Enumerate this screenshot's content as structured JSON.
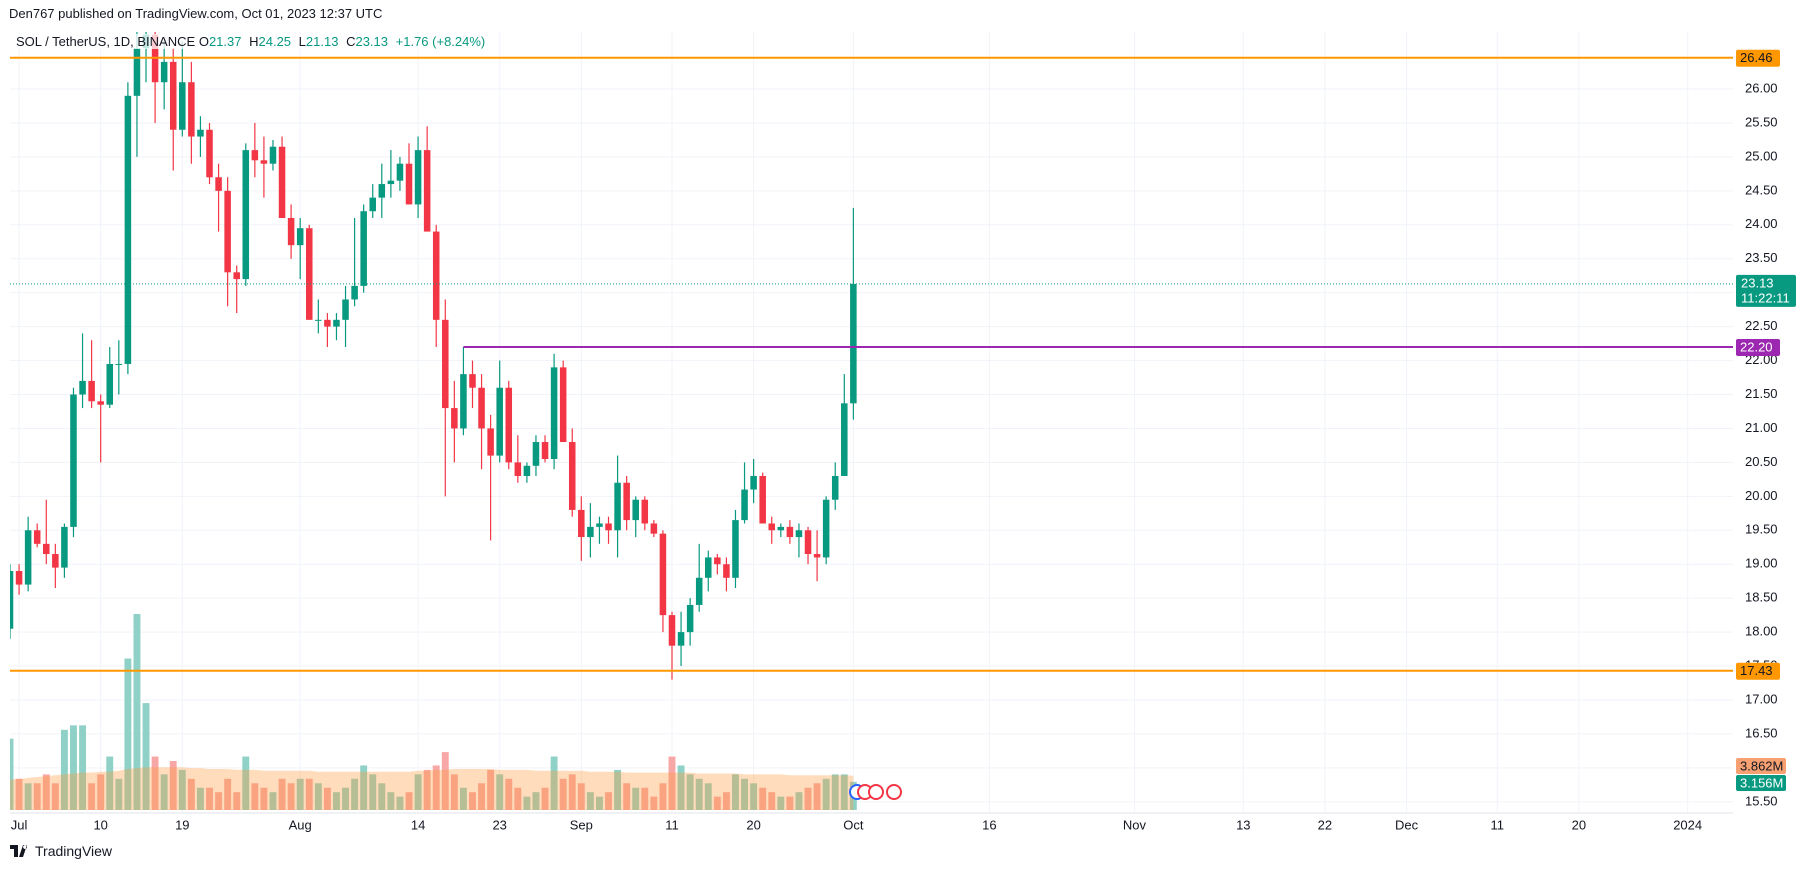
{
  "publisher": "Den767 published on TradingView.com, Oct 01, 2023 12:37 UTC",
  "footer": "TradingView",
  "chart_data": {
    "type": "candlestick",
    "legend": {
      "symbol": "SOL / TetherUS, 1D, BINANCE",
      "items": [
        {
          "key": "O",
          "value": 21.37
        },
        {
          "key": "H",
          "value": 24.25
        },
        {
          "key": "L",
          "value": 21.13
        },
        {
          "key": "C",
          "value": 23.13
        }
      ],
      "change": "+1.76 (+8.24%)"
    },
    "up_color": "#089981",
    "down_color": "#f23645",
    "volume_up_color": "#8fd1c6",
    "volume_down_color": "#f7a8a6",
    "volume_ma_color": "#ff9a3c",
    "grid": true,
    "x": [
      "2023-06-30",
      "2023-07-01",
      "2023-07-02",
      "2023-07-03",
      "2023-07-04",
      "2023-07-05",
      "2023-07-06",
      "2023-07-07",
      "2023-07-08",
      "2023-07-09",
      "2023-07-10",
      "2023-07-11",
      "2023-07-12",
      "2023-07-13",
      "2023-07-14",
      "2023-07-15",
      "2023-07-16",
      "2023-07-17",
      "2023-07-18",
      "2023-07-19",
      "2023-07-20",
      "2023-07-21",
      "2023-07-22",
      "2023-07-23",
      "2023-07-24",
      "2023-07-25",
      "2023-07-26",
      "2023-07-27",
      "2023-07-28",
      "2023-07-29",
      "2023-07-30",
      "2023-07-31",
      "2023-08-01",
      "2023-08-02",
      "2023-08-03",
      "2023-08-04",
      "2023-08-05",
      "2023-08-06",
      "2023-08-07",
      "2023-08-08",
      "2023-08-09",
      "2023-08-10",
      "2023-08-11",
      "2023-08-12",
      "2023-08-13",
      "2023-08-14",
      "2023-08-15",
      "2023-08-16",
      "2023-08-17",
      "2023-08-18",
      "2023-08-19",
      "2023-08-20",
      "2023-08-21",
      "2023-08-22",
      "2023-08-23",
      "2023-08-24",
      "2023-08-25",
      "2023-08-26",
      "2023-08-27",
      "2023-08-28",
      "2023-08-29",
      "2023-08-30",
      "2023-08-31",
      "2023-09-01",
      "2023-09-02",
      "2023-09-03",
      "2023-09-04",
      "2023-09-05",
      "2023-09-06",
      "2023-09-07",
      "2023-09-08",
      "2023-09-09",
      "2023-09-10",
      "2023-09-11",
      "2023-09-12",
      "2023-09-13",
      "2023-09-14",
      "2023-09-15",
      "2023-09-16",
      "2023-09-17",
      "2023-09-18",
      "2023-09-19",
      "2023-09-20",
      "2023-09-21",
      "2023-09-22",
      "2023-09-23",
      "2023-09-24",
      "2023-09-25",
      "2023-09-26",
      "2023-09-27",
      "2023-09-28",
      "2023-09-29",
      "2023-09-30",
      "2023-10-01"
    ],
    "open": [
      18.05,
      18.9,
      18.7,
      19.5,
      19.3,
      19.15,
      18.95,
      19.55,
      21.5,
      21.7,
      21.4,
      21.35,
      21.95,
      21.95,
      25.9,
      26.6,
      26.8,
      26.1,
      26.4,
      25.4,
      26.1,
      25.3,
      25.4,
      24.7,
      24.5,
      23.3,
      23.2,
      25.1,
      24.95,
      24.9,
      25.15,
      24.1,
      23.7,
      23.95,
      22.6,
      22.6,
      22.5,
      22.6,
      22.9,
      23.1,
      24.2,
      24.4,
      24.6,
      24.65,
      24.9,
      24.3,
      25.1,
      23.9,
      22.6,
      21.3,
      21.0,
      21.8,
      21.6,
      21.0,
      20.6,
      21.6,
      20.5,
      20.3,
      20.45,
      20.8,
      20.55,
      21.9,
      20.8,
      19.8,
      19.4,
      19.55,
      19.6,
      19.5,
      20.2,
      19.65,
      19.95,
      19.6,
      19.45,
      18.25,
      17.8,
      18.0,
      18.4,
      18.8,
      19.1,
      19.0,
      18.8,
      19.65,
      20.1,
      20.3,
      19.6,
      19.5,
      19.55,
      19.4,
      19.5,
      19.15,
      19.1,
      19.95,
      20.3,
      21.37
    ],
    "high": [
      19.0,
      19.0,
      19.7,
      19.6,
      19.95,
      19.3,
      19.6,
      21.6,
      22.4,
      22.3,
      21.5,
      22.2,
      22.3,
      26.1,
      26.9,
      27.0,
      27.0,
      26.7,
      26.6,
      26.7,
      26.4,
      25.6,
      25.5,
      24.9,
      24.7,
      23.4,
      25.2,
      25.5,
      25.3,
      25.25,
      25.3,
      24.3,
      24.1,
      24.0,
      22.9,
      22.7,
      22.7,
      23.1,
      24.1,
      24.3,
      24.6,
      24.9,
      25.1,
      25.0,
      25.2,
      25.3,
      25.45,
      24.0,
      22.9,
      21.7,
      22.2,
      22.0,
      21.8,
      21.2,
      22.0,
      21.7,
      20.9,
      20.5,
      20.9,
      20.9,
      22.1,
      22.0,
      21.0,
      20.0,
      19.9,
      19.7,
      19.7,
      20.6,
      20.3,
      20.0,
      20.0,
      19.65,
      19.5,
      18.3,
      18.3,
      18.5,
      19.3,
      19.2,
      19.15,
      19.1,
      19.8,
      20.5,
      20.55,
      20.35,
      19.7,
      19.6,
      19.65,
      19.6,
      19.55,
      19.5,
      20.0,
      20.5,
      21.8,
      24.25
    ],
    "low": [
      17.9,
      18.55,
      18.6,
      19.25,
      19.0,
      18.65,
      18.8,
      19.4,
      21.3,
      21.3,
      20.5,
      21.3,
      21.5,
      21.8,
      25.0,
      26.1,
      25.5,
      25.7,
      24.8,
      25.3,
      24.9,
      25.0,
      24.6,
      23.9,
      22.8,
      22.7,
      23.1,
      24.7,
      24.4,
      24.8,
      24.1,
      23.5,
      23.2,
      22.6,
      22.4,
      22.2,
      22.3,
      22.2,
      22.8,
      23.0,
      24.1,
      24.1,
      24.4,
      24.5,
      24.3,
      24.1,
      23.9,
      22.2,
      20.0,
      20.5,
      20.9,
      21.3,
      20.4,
      19.35,
      20.5,
      20.4,
      20.2,
      20.2,
      20.3,
      20.5,
      20.4,
      20.8,
      19.7,
      19.05,
      19.1,
      19.3,
      19.3,
      19.1,
      19.5,
      19.4,
      19.5,
      19.4,
      18.0,
      17.3,
      17.5,
      17.8,
      18.3,
      18.6,
      18.85,
      18.6,
      18.65,
      19.6,
      19.9,
      19.6,
      19.3,
      19.4,
      19.3,
      19.1,
      19.0,
      18.75,
      19.0,
      19.8,
      20.3,
      21.13
    ],
    "close": [
      18.9,
      18.7,
      19.5,
      19.3,
      19.15,
      18.95,
      19.55,
      21.5,
      21.7,
      21.4,
      21.35,
      21.95,
      21.95,
      25.9,
      26.6,
      26.8,
      26.1,
      26.4,
      25.4,
      26.1,
      25.3,
      25.4,
      24.7,
      24.5,
      23.3,
      23.2,
      25.1,
      24.95,
      24.9,
      25.15,
      24.1,
      23.7,
      23.95,
      22.6,
      22.6,
      22.5,
      22.6,
      22.9,
      23.1,
      24.2,
      24.4,
      24.6,
      24.65,
      24.9,
      24.3,
      25.1,
      23.9,
      22.6,
      21.3,
      21.0,
      21.8,
      21.6,
      21.0,
      20.6,
      21.6,
      20.5,
      20.3,
      20.45,
      20.8,
      20.55,
      21.9,
      20.8,
      19.8,
      19.4,
      19.55,
      19.6,
      19.5,
      20.2,
      19.65,
      19.95,
      19.6,
      19.45,
      18.25,
      17.8,
      18.0,
      18.4,
      18.8,
      19.1,
      19.0,
      18.8,
      19.65,
      20.1,
      20.3,
      19.6,
      19.5,
      19.55,
      19.4,
      19.5,
      19.15,
      19.1,
      19.95,
      20.3,
      21.37,
      23.13
    ],
    "volume": [
      8,
      3.5,
      3,
      3,
      4,
      3,
      9,
      9.5,
      9.5,
      3,
      4,
      6,
      3.5,
      17,
      22,
      12,
      6,
      4,
      5.5,
      4.5,
      3.5,
      2.5,
      2.5,
      2,
      3.5,
      2,
      6,
      3,
      2.5,
      2,
      3.5,
      3,
      3.5,
      3.5,
      3,
      2.5,
      2,
      2.5,
      3.5,
      5,
      4,
      3,
      2,
      1.5,
      2,
      4,
      4.5,
      5,
      6.5,
      4,
      2.5,
      2,
      3,
      4.5,
      4,
      3.5,
      2.5,
      1.5,
      2,
      2.5,
      6,
      3.5,
      4,
      3,
      2,
      1.5,
      2,
      4.5,
      3,
      2.5,
      2.5,
      1.5,
      3,
      6,
      5,
      4,
      3.5,
      3,
      1.5,
      2,
      4,
      3.5,
      3,
      2.5,
      2,
      1.5,
      1.5,
      2,
      2.5,
      3,
      3.5,
      4,
      4,
      3.156
    ],
    "volume_ma": [
      3.4,
      3.5,
      3.6,
      3.7,
      3.8,
      3.9,
      4.0,
      4.1,
      4.2,
      4.2,
      4.3,
      4.3,
      4.4,
      4.6,
      4.7,
      4.8,
      4.8,
      4.8,
      4.8,
      4.8,
      4.7,
      4.7,
      4.6,
      4.6,
      4.6,
      4.5,
      4.5,
      4.5,
      4.4,
      4.4,
      4.4,
      4.4,
      4.4,
      4.4,
      4.3,
      4.3,
      4.3,
      4.3,
      4.3,
      4.3,
      4.3,
      4.3,
      4.3,
      4.3,
      4.3,
      4.4,
      4.4,
      4.5,
      4.5,
      4.6,
      4.6,
      4.6,
      4.6,
      4.6,
      4.5,
      4.5,
      4.5,
      4.5,
      4.4,
      4.4,
      4.4,
      4.4,
      4.4,
      4.4,
      4.3,
      4.3,
      4.3,
      4.3,
      4.2,
      4.2,
      4.2,
      4.2,
      4.2,
      4.2,
      4.2,
      4.2,
      4.1,
      4.1,
      4.1,
      4.1,
      4.1,
      4.0,
      4.0,
      4.0,
      4.0,
      4.0,
      3.9,
      3.9,
      3.9,
      3.9,
      3.9,
      3.9,
      3.9,
      3.862
    ],
    "volume_badges": [
      {
        "value": 3.862,
        "label": "3.862M",
        "color": "#f7a072"
      },
      {
        "value": 3.156,
        "label": "3.156M",
        "color": "#089981"
      }
    ],
    "levels": [
      {
        "value": 26.46,
        "color": "#ff9800"
      },
      {
        "value": {
          "value": 22.2,
          "label": "22.20"
        },
        "color": "#9c27b0",
        "start": "2023-08-19"
      },
      {
        "value": 17.43,
        "color": "#ff9800"
      }
    ],
    "last_price": {
      "value": 23.13,
      "countdown": "11:22:11",
      "color": "#089981"
    },
    "xlim": [
      "2023-06-30",
      "2024-01-06"
    ],
    "xticks": [
      {
        "value": "2023-07-01",
        "label": "Jul"
      },
      {
        "value": "2023-07-10",
        "label": "10"
      },
      {
        "value": "2023-07-19",
        "label": "19"
      },
      {
        "value": "2023-08-01",
        "label": "Aug"
      },
      {
        "value": "2023-08-14",
        "label": "14"
      },
      {
        "value": "2023-08-23",
        "label": "23"
      },
      {
        "value": "2023-09-01",
        "label": "Sep"
      },
      {
        "value": "2023-09-11",
        "label": "11"
      },
      {
        "value": "2023-09-20",
        "label": "20"
      },
      {
        "value": "2023-10-01",
        "label": "Oct"
      },
      {
        "value": "2023-10-16",
        "label": "16"
      },
      {
        "value": "2023-11-01",
        "label": "Nov"
      },
      {
        "value": "2023-11-13",
        "label": "13"
      },
      {
        "value": "2023-11-22",
        "label": "22"
      },
      {
        "value": "2023-12-01",
        "label": "Dec"
      },
      {
        "value": "2023-12-11",
        "label": "11"
      },
      {
        "value": "2023-12-20",
        "label": "20"
      },
      {
        "value": "2024-01-01",
        "label": "2024"
      }
    ],
    "ylim": [
      15.35,
      26.84
    ],
    "yticks": [
      {
        "value": 15.5,
        "label": "15.50"
      },
      {
        "value": 16,
        "label": "16.00"
      },
      {
        "value": 16.5,
        "label": "16.50"
      },
      {
        "value": 17,
        "label": "17.00"
      },
      {
        "value": 17.5,
        "label": "17.50"
      },
      {
        "value": 18,
        "label": "18.00"
      },
      {
        "value": 18.5,
        "label": "18.50"
      },
      {
        "value": 19,
        "label": "19.00"
      },
      {
        "value": 19.5,
        "label": "19.50"
      },
      {
        "value": 20,
        "label": "20.00"
      },
      {
        "value": 20.5,
        "label": "20.50"
      },
      {
        "value": 21,
        "label": "21.00"
      },
      {
        "value": 21.5,
        "label": "21.50"
      },
      {
        "value": 22,
        "label": "22.00"
      },
      {
        "value": 22.5,
        "label": "22.50"
      },
      {
        "value": 23,
        "label": "23.00"
      },
      {
        "value": 23.5,
        "label": "23.50"
      },
      {
        "value": 24,
        "label": "24.00"
      },
      {
        "value": 24.5,
        "label": "24.50"
      },
      {
        "value": 25,
        "label": "25.00"
      },
      {
        "value": 25.5,
        "label": "25.50"
      },
      {
        "value": 26,
        "label": "26.00"
      }
    ]
  }
}
